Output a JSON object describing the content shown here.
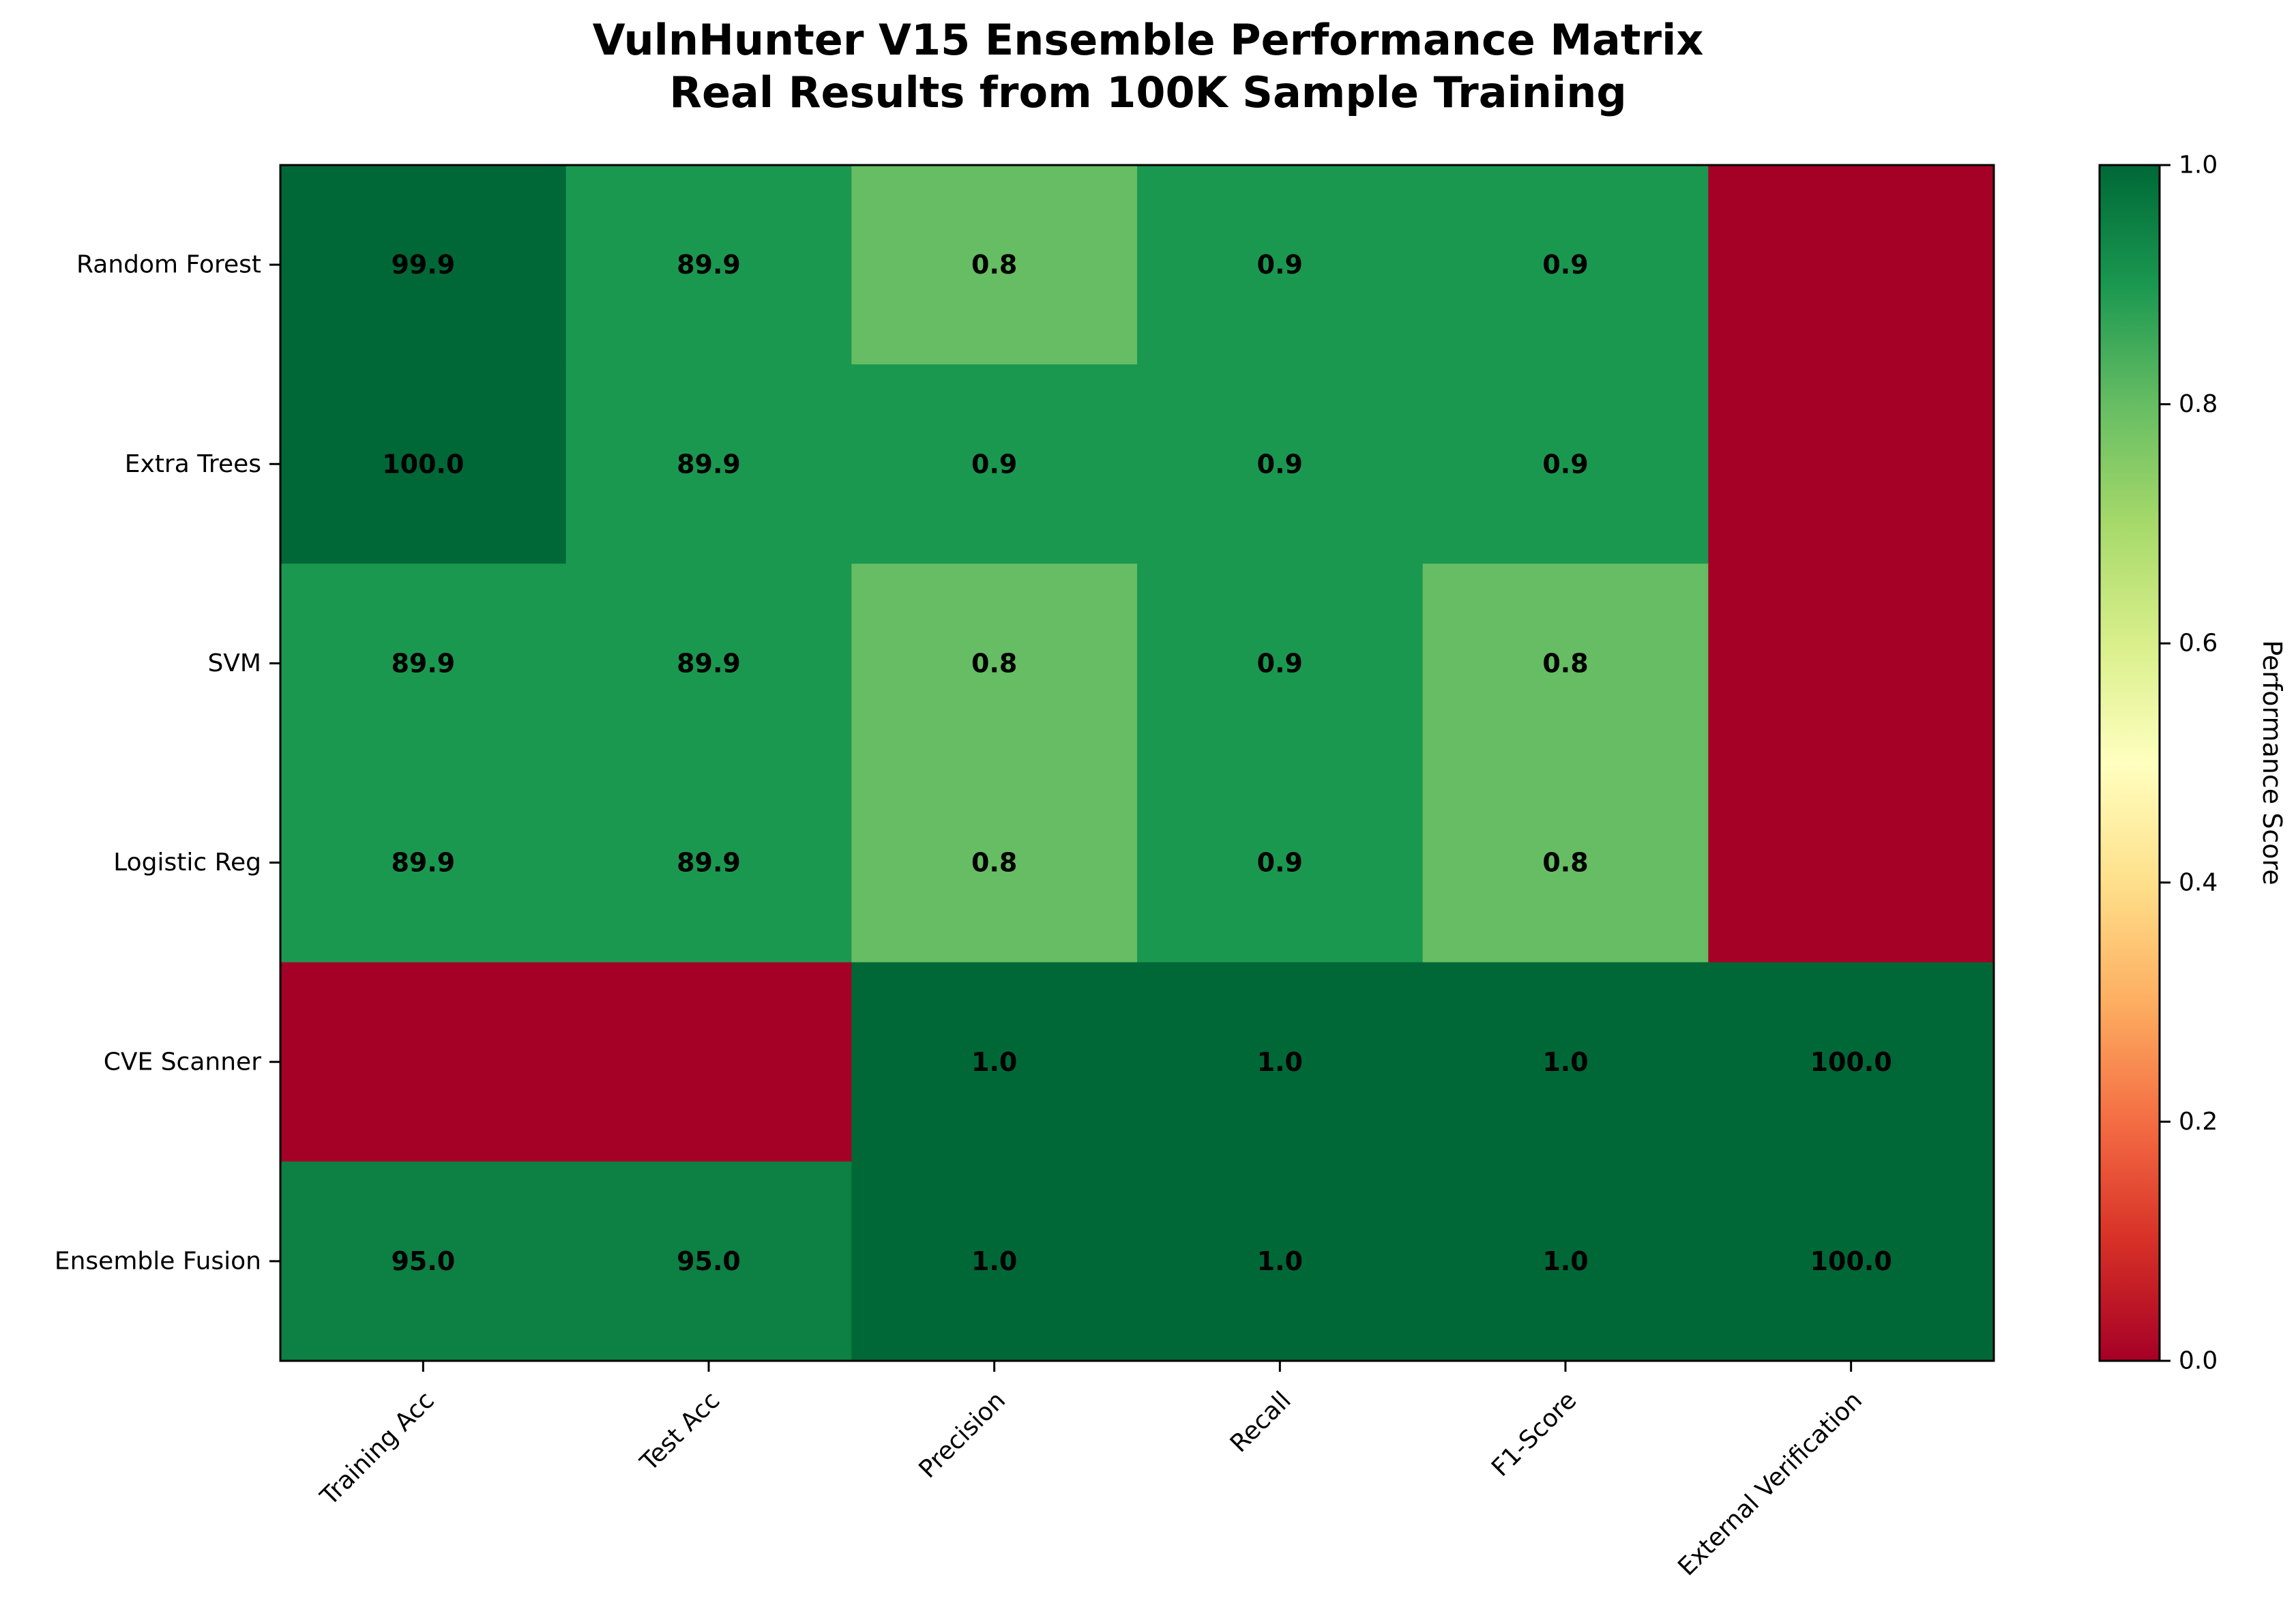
{
  "chart_data": {
    "type": "heatmap",
    "title": "VulnHunter V15 Ensemble Performance Matrix",
    "subtitle": "Real Results from 100K Sample Training",
    "columns": [
      "Training Acc",
      "Test Acc",
      "Precision",
      "Recall",
      "F1-Score",
      "External Verification"
    ],
    "rows": [
      "Random Forest",
      "Extra Trees",
      "SVM",
      "Logistic Reg",
      "CVE Scanner",
      "Ensemble Fusion"
    ],
    "values": [
      [
        99.9,
        89.9,
        0.8,
        0.9,
        0.9,
        0
      ],
      [
        100.0,
        89.9,
        0.9,
        0.9,
        0.9,
        0
      ],
      [
        89.9,
        89.9,
        0.8,
        0.9,
        0.8,
        0
      ],
      [
        89.9,
        89.9,
        0.8,
        0.9,
        0.8,
        0
      ],
      [
        0,
        0,
        1.0,
        1.0,
        1.0,
        100.0
      ],
      [
        95.0,
        95.0,
        1.0,
        1.0,
        1.0,
        100.0
      ]
    ],
    "cell_labels": [
      [
        "99.9",
        "89.9",
        "0.8",
        "0.9",
        "0.9",
        ""
      ],
      [
        "100.0",
        "89.9",
        "0.9",
        "0.9",
        "0.9",
        ""
      ],
      [
        "89.9",
        "89.9",
        "0.8",
        "0.9",
        "0.8",
        ""
      ],
      [
        "89.9",
        "89.9",
        "0.8",
        "0.9",
        "0.8",
        ""
      ],
      [
        "",
        "",
        "1.0",
        "1.0",
        "1.0",
        "100.0"
      ],
      [
        "95.0",
        "95.0",
        "1.0",
        "1.0",
        "1.0",
        "100.0"
      ]
    ],
    "colormap": "RdYlGn",
    "colorbar": {
      "label": "Performance Score",
      "range": [
        0,
        1
      ],
      "ticks": [
        "0.0",
        "0.2",
        "0.4",
        "0.6",
        "0.8",
        "1.0"
      ]
    }
  }
}
